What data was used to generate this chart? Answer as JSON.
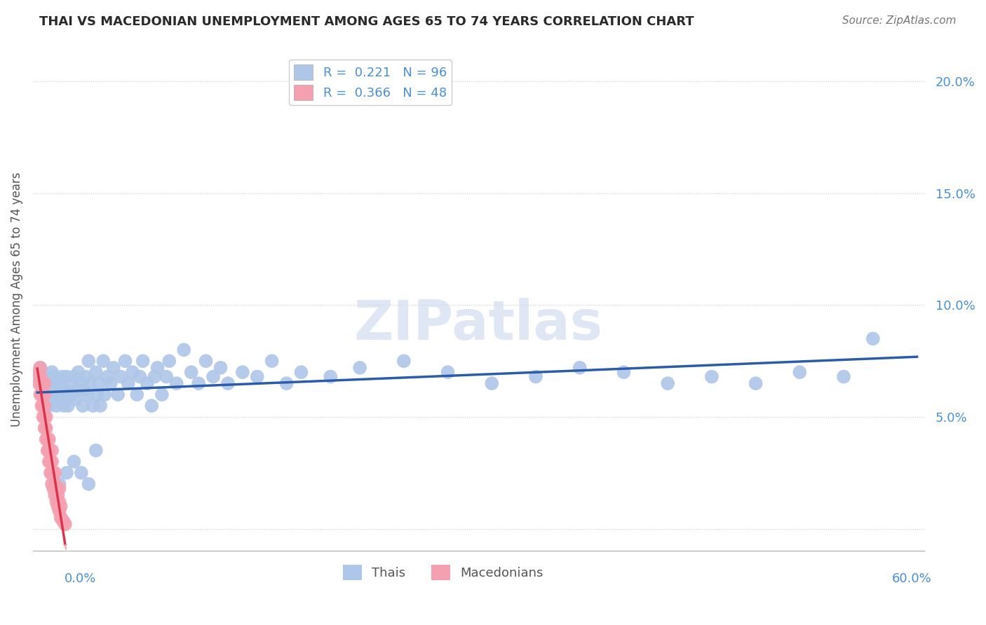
{
  "title": "THAI VS MACEDONIAN UNEMPLOYMENT AMONG AGES 65 TO 74 YEARS CORRELATION CHART",
  "source": "Source: ZipAtlas.com",
  "ylabel": "Unemployment Among Ages 65 to 74 years",
  "xmin": 0.0,
  "xmax": 0.6,
  "ymin": -0.01,
  "ymax": 0.215,
  "color_thai": "#aec6e8",
  "color_macedonian": "#f4a0b0",
  "color_trend_thai": "#2a5caa",
  "color_trend_macedonian": "#d9344a",
  "color_diagonal": "#f4a0b0",
  "background_color": "#ffffff",
  "watermark": "ZIPatlas",
  "legend_r1": "R =  0.221",
  "legend_n1": "N = 96",
  "legend_r2": "R =  0.366",
  "legend_n2": "N = 48",
  "axis_label_color": "#4a90d9",
  "title_color": "#2a2a2a",
  "grid_color": "#cccccc",
  "thai_x": [
    0.001,
    0.002,
    0.003,
    0.004,
    0.005,
    0.005,
    0.006,
    0.007,
    0.008,
    0.009,
    0.01,
    0.01,
    0.011,
    0.012,
    0.013,
    0.014,
    0.015,
    0.015,
    0.016,
    0.017,
    0.018,
    0.019,
    0.02,
    0.02,
    0.021,
    0.022,
    0.023,
    0.025,
    0.026,
    0.027,
    0.028,
    0.03,
    0.031,
    0.032,
    0.033,
    0.034,
    0.035,
    0.036,
    0.038,
    0.04,
    0.041,
    0.042,
    0.043,
    0.045,
    0.046,
    0.048,
    0.05,
    0.052,
    0.055,
    0.057,
    0.06,
    0.062,
    0.065,
    0.068,
    0.07,
    0.072,
    0.075,
    0.078,
    0.08,
    0.082,
    0.085,
    0.088,
    0.09,
    0.095,
    0.1,
    0.105,
    0.11,
    0.115,
    0.12,
    0.125,
    0.13,
    0.14,
    0.15,
    0.16,
    0.17,
    0.18,
    0.2,
    0.22,
    0.25,
    0.28,
    0.31,
    0.34,
    0.37,
    0.4,
    0.43,
    0.46,
    0.49,
    0.52,
    0.55,
    0.57,
    0.015,
    0.02,
    0.025,
    0.03,
    0.035,
    0.04
  ],
  "thai_y": [
    0.068,
    0.072,
    0.065,
    0.07,
    0.062,
    0.068,
    0.058,
    0.065,
    0.055,
    0.06,
    0.065,
    0.07,
    0.06,
    0.068,
    0.055,
    0.062,
    0.058,
    0.065,
    0.06,
    0.068,
    0.055,
    0.062,
    0.06,
    0.068,
    0.055,
    0.065,
    0.06,
    0.068,
    0.058,
    0.062,
    0.07,
    0.065,
    0.055,
    0.062,
    0.068,
    0.06,
    0.075,
    0.065,
    0.055,
    0.07,
    0.06,
    0.065,
    0.055,
    0.075,
    0.06,
    0.068,
    0.065,
    0.072,
    0.06,
    0.068,
    0.075,
    0.065,
    0.07,
    0.06,
    0.068,
    0.075,
    0.065,
    0.055,
    0.068,
    0.072,
    0.06,
    0.068,
    0.075,
    0.065,
    0.08,
    0.07,
    0.065,
    0.075,
    0.068,
    0.072,
    0.065,
    0.07,
    0.068,
    0.075,
    0.065,
    0.07,
    0.068,
    0.072,
    0.075,
    0.07,
    0.065,
    0.068,
    0.072,
    0.07,
    0.065,
    0.068,
    0.065,
    0.07,
    0.068,
    0.085,
    0.02,
    0.025,
    0.03,
    0.025,
    0.02,
    0.035
  ],
  "mac_x": [
    0.001,
    0.001,
    0.002,
    0.002,
    0.002,
    0.003,
    0.003,
    0.003,
    0.004,
    0.004,
    0.004,
    0.004,
    0.005,
    0.005,
    0.005,
    0.005,
    0.005,
    0.006,
    0.006,
    0.006,
    0.007,
    0.007,
    0.008,
    0.008,
    0.008,
    0.009,
    0.009,
    0.01,
    0.01,
    0.01,
    0.01,
    0.011,
    0.011,
    0.012,
    0.012,
    0.012,
    0.013,
    0.013,
    0.014,
    0.014,
    0.015,
    0.015,
    0.015,
    0.016,
    0.016,
    0.017,
    0.018,
    0.019
  ],
  "mac_y": [
    0.065,
    0.07,
    0.06,
    0.068,
    0.072,
    0.055,
    0.06,
    0.065,
    0.05,
    0.055,
    0.06,
    0.065,
    0.045,
    0.05,
    0.055,
    0.06,
    0.065,
    0.04,
    0.045,
    0.05,
    0.035,
    0.04,
    0.03,
    0.035,
    0.04,
    0.025,
    0.03,
    0.02,
    0.025,
    0.03,
    0.035,
    0.018,
    0.025,
    0.015,
    0.02,
    0.025,
    0.012,
    0.018,
    0.01,
    0.015,
    0.008,
    0.012,
    0.018,
    0.005,
    0.01,
    0.004,
    0.003,
    0.002
  ]
}
